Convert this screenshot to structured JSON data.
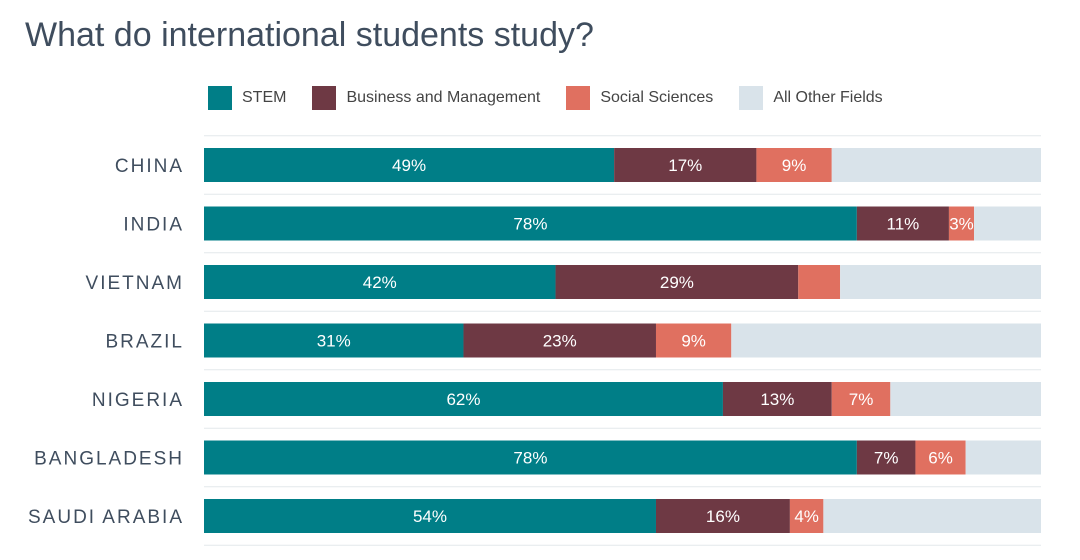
{
  "chart_data": {
    "type": "bar",
    "orientation": "horizontal",
    "stacked": true,
    "title": "What do international students study?",
    "categories": [
      "CHINA",
      "INDIA",
      "VIETNAM",
      "BRAZIL",
      "NIGERIA",
      "BANGLADESH",
      "SAUDI ARABIA"
    ],
    "series": [
      {
        "name": "STEM",
        "color": "#007e87",
        "values": [
          49,
          78,
          42,
          31,
          62,
          78,
          54
        ],
        "labels": [
          "49%",
          "78%",
          "42%",
          "31%",
          "62%",
          "78%",
          "54%"
        ]
      },
      {
        "name": "Business and Management",
        "color": "#6e3944",
        "values": [
          17,
          11,
          29,
          23,
          13,
          7,
          16
        ],
        "labels": [
          "17%",
          "11%",
          "29%",
          "23%",
          "13%",
          "7%",
          "16%"
        ]
      },
      {
        "name": "Social Sciences",
        "color": "#e07060",
        "values": [
          9,
          3,
          5,
          9,
          7,
          6,
          4
        ],
        "labels": [
          "9%",
          "3%",
          "",
          "9%",
          "7%",
          "6%",
          "4%"
        ]
      },
      {
        "name": "All Other Fields",
        "color": "#d9e3ea",
        "values": [
          25,
          8,
          24,
          37,
          18,
          9,
          26
        ],
        "labels": [
          "",
          "",
          "",
          "",
          "",
          "",
          ""
        ]
      }
    ],
    "xlim": [
      0,
      100
    ],
    "legend": "top",
    "grid": true
  }
}
